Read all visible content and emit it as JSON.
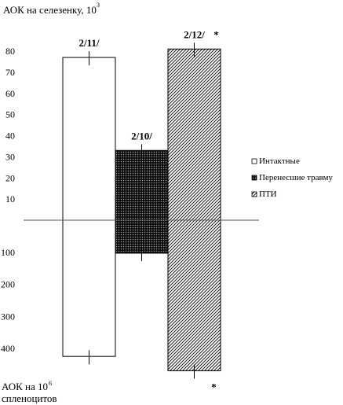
{
  "chart_data": {
    "type": "bar",
    "top_axis_label": "АОК на селезенку, 10",
    "top_axis_label_exp": "3",
    "bottom_axis_label_line1": "АОК на 10",
    "bottom_axis_label_exp": "6",
    "bottom_axis_label_line2": "спленоцитов",
    "upper_ticks": [
      "10",
      "20",
      "30",
      "40",
      "50",
      "60",
      "70",
      "80"
    ],
    "upper_tick_values": [
      10,
      20,
      30,
      40,
      50,
      60,
      70,
      80
    ],
    "lower_ticks": [
      "100",
      "200",
      "300",
      "400"
    ],
    "lower_tick_values": [
      100,
      200,
      300,
      400
    ],
    "upper_ylim": [
      0,
      80
    ],
    "lower_ylim": [
      0,
      400
    ],
    "series": [
      {
        "name": "Интактные",
        "pattern": "white",
        "upper_value": 77,
        "lower_value": 425,
        "top_label": "2/11/",
        "top_star": "",
        "bottom_star": ""
      },
      {
        "name": "Перенесшие травму",
        "pattern": "crosshatch",
        "upper_value": 33,
        "lower_value": 103,
        "top_label": "2/10/",
        "top_star": "",
        "bottom_star": ""
      },
      {
        "name": "ПТИ",
        "pattern": "diagonal",
        "upper_value": 81,
        "lower_value": 470,
        "top_label": "2/12/",
        "top_star": "*",
        "bottom_star": "*"
      }
    ],
    "legend_position": "right"
  }
}
